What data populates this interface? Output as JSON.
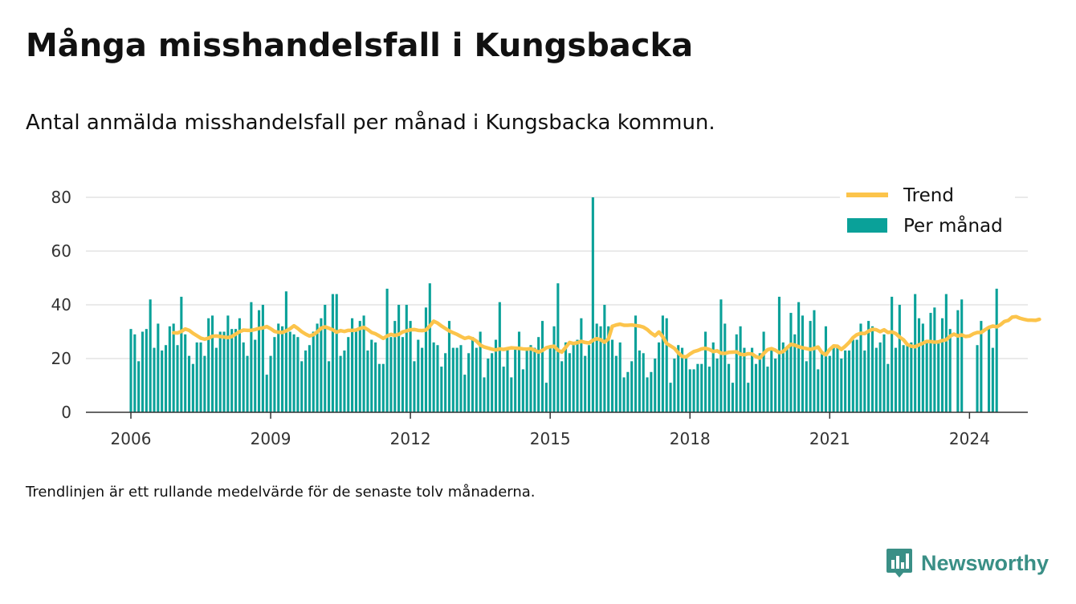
{
  "title": "Många misshandelsfall i Kungsbacka",
  "subtitle": "Antal anmälda misshandelsfall per månad i Kungsbacka kommun.",
  "note": "Trendlinjen är ett rullande medelvärde för de senaste tolv månaderna.",
  "brand": {
    "name": "Newsworthy",
    "icon": "newsworthy-logo-icon"
  },
  "colors": {
    "bars": "#0aa199",
    "trend": "#fcc44b",
    "grid": "#dddddd",
    "axis": "#333333",
    "brand": "#3a8f86"
  },
  "chart_data": {
    "type": "bar",
    "title": "",
    "xlabel": "",
    "ylabel": "",
    "ylim": [
      0,
      80
    ],
    "yticks": [
      "0",
      "20",
      "40",
      "60",
      "80"
    ],
    "xticks": [
      "2006",
      "2009",
      "2012",
      "2015",
      "2018",
      "2021",
      "2024"
    ],
    "grid": true,
    "legend": {
      "placement": "top-right",
      "entries": [
        "Trend",
        "Per månad"
      ]
    },
    "x_start": "2006-01",
    "series": [
      {
        "name": "Per månad",
        "kind": "bar",
        "values": [
          31,
          29,
          19,
          30,
          31,
          42,
          24,
          33,
          23,
          25,
          32,
          33,
          25,
          43,
          29,
          21,
          18,
          26,
          26,
          21,
          35,
          36,
          24,
          30,
          30,
          36,
          31,
          31,
          35,
          26,
          21,
          41,
          27,
          38,
          40,
          14,
          21,
          28,
          33,
          32,
          45,
          30,
          29,
          28,
          19,
          23,
          25,
          30,
          33,
          35,
          40,
          19,
          44,
          44,
          21,
          23,
          28,
          35,
          31,
          34,
          36,
          23,
          27,
          26,
          18,
          18,
          46,
          28,
          34,
          40,
          28,
          40,
          34,
          19,
          27,
          24,
          39,
          48,
          26,
          25,
          17,
          22,
          34,
          24,
          24,
          25,
          14,
          22,
          28,
          24,
          30,
          13,
          20,
          22,
          27,
          41,
          17,
          24,
          13,
          24,
          30,
          16,
          24,
          25,
          24,
          28,
          34,
          11,
          24,
          32,
          48,
          19,
          26,
          22,
          26,
          27,
          35,
          21,
          25,
          80,
          33,
          32,
          40,
          32,
          27,
          21,
          26,
          13,
          15,
          19,
          36,
          23,
          22,
          13,
          15,
          20,
          26,
          36,
          35,
          11,
          20,
          25,
          24,
          21,
          16,
          16,
          18,
          18,
          30,
          17,
          26,
          20,
          42,
          33,
          18,
          11,
          29,
          32,
          24,
          11,
          24,
          18,
          22,
          30,
          17,
          24,
          20,
          43,
          26,
          24,
          37,
          29,
          41,
          36,
          19,
          34,
          38,
          16,
          22,
          32,
          21,
          24,
          24,
          20,
          23,
          23,
          27,
          27,
          33,
          23,
          34,
          32,
          24,
          26,
          29,
          18,
          43,
          24,
          40,
          25,
          25,
          26,
          44,
          35,
          33,
          26,
          37,
          39,
          26,
          35,
          44,
          31,
          null,
          38,
          42,
          null,
          null,
          null,
          25,
          34,
          null,
          31,
          24,
          46
        ]
      },
      {
        "name": "Trend",
        "kind": "line",
        "x_start": "2006-12",
        "values": [
          29.6,
          29.5,
          30.1,
          31.0,
          30.5,
          29.4,
          28.5,
          27.6,
          27.2,
          27.6,
          28.3,
          28.4,
          28.2,
          28.0,
          27.8,
          28.2,
          29.1,
          30.0,
          30.6,
          30.5,
          30.5,
          30.8,
          31.2,
          31.4,
          31.9,
          31.1,
          30.1,
          29.8,
          29.7,
          30.3,
          31.1,
          32.2,
          31.2,
          30.0,
          29.1,
          28.4,
          28.9,
          29.9,
          31.3,
          31.8,
          31.3,
          30.7,
          29.8,
          30.4,
          30.1,
          30.5,
          30.5,
          30.6,
          31.2,
          31.6,
          30.8,
          29.7,
          29.2,
          28.4,
          27.5,
          28.4,
          29.0,
          28.6,
          29.0,
          29.9,
          30.3,
          30.7,
          30.8,
          30.5,
          30.4,
          30.6,
          32.1,
          33.9,
          33.2,
          32.1,
          31.2,
          30.3,
          29.6,
          29.0,
          28.2,
          27.5,
          27.9,
          27.4,
          26.5,
          25.0,
          24.3,
          23.9,
          23.5,
          23.2,
          23.6,
          23.4,
          23.7,
          24.0,
          23.9,
          23.8,
          23.6,
          23.5,
          23.7,
          23.1,
          22.4,
          23.0,
          24.0,
          24.4,
          24.6,
          23.1,
          22.4,
          24.2,
          26.0,
          25.6,
          25.9,
          26.4,
          26.0,
          25.8,
          26.8,
          27.4,
          27.0,
          26.1,
          27.3,
          32.0,
          32.5,
          32.8,
          32.4,
          32.4,
          32.5,
          32.3,
          32.1,
          31.7,
          30.8,
          29.5,
          28.5,
          29.9,
          28.1,
          25.6,
          24.7,
          23.8,
          22.1,
          20.8,
          20.6,
          21.7,
          22.6,
          23.0,
          23.6,
          23.8,
          23.4,
          22.6,
          22.9,
          22.0,
          21.9,
          22.3,
          22.4,
          22.5,
          21.6,
          21.4,
          21.8,
          21.7,
          20.7,
          20.2,
          21.9,
          23.3,
          23.7,
          23.1,
          22.2,
          22.6,
          24.0,
          25.3,
          25.0,
          24.4,
          24.0,
          23.7,
          23.4,
          23.8,
          24.3,
          22.2,
          21.4,
          23.4,
          24.7,
          24.6,
          23.4,
          24.6,
          26.0,
          27.8,
          28.9,
          29.4,
          29.3,
          30.2,
          30.9,
          30.7,
          30.0,
          30.7,
          29.7,
          29.9,
          29.3,
          28.0,
          27.0,
          25.2,
          24.6,
          24.4,
          25.1,
          25.7,
          26.4,
          26.3,
          26.1,
          26.2,
          26.7,
          27.0,
          28.3,
          29.1,
          28.4,
          28.8,
          28.2,
          28.4,
          29.2,
          29.7,
          29.7,
          30.7,
          31.6,
          32.1,
          31.8,
          32.6,
          33.8,
          34.2,
          35.4,
          35.6,
          35.0,
          34.6,
          34.3,
          34.3,
          34.2,
          34.6
        ]
      }
    ]
  }
}
